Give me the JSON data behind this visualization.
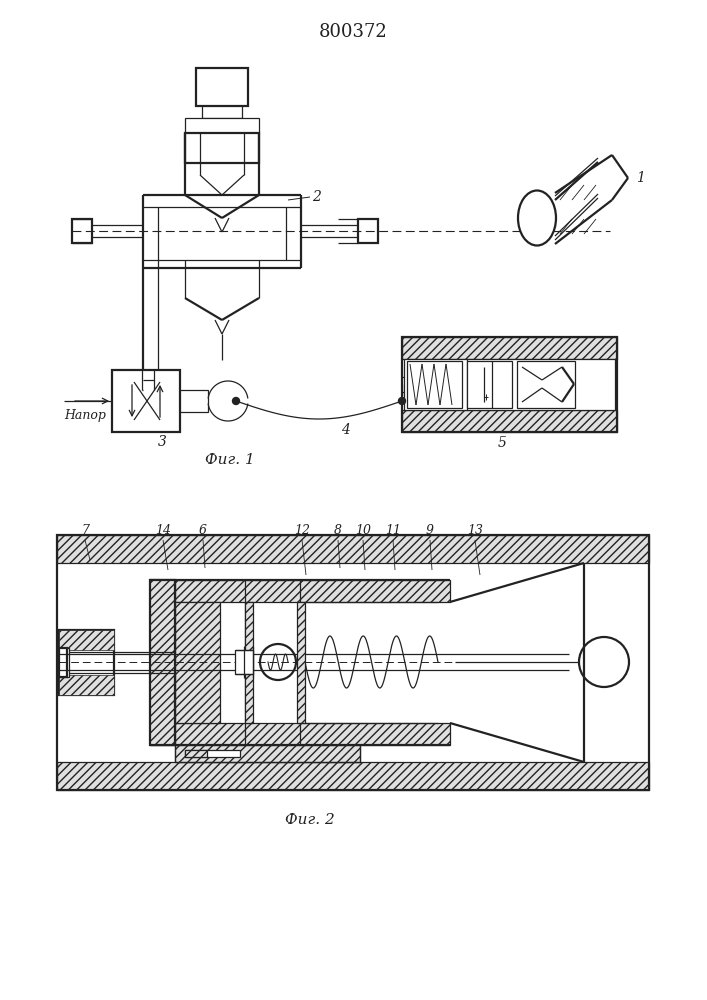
{
  "title": "800372",
  "fig1_caption": "Фиг. 1",
  "fig2_caption": "Фиг. 2",
  "napor": "Напор",
  "bg": "#ffffff",
  "lc": "#222222",
  "lw1": 0.9,
  "lw2": 1.6,
  "hatch_fc": "#e0e0e0"
}
